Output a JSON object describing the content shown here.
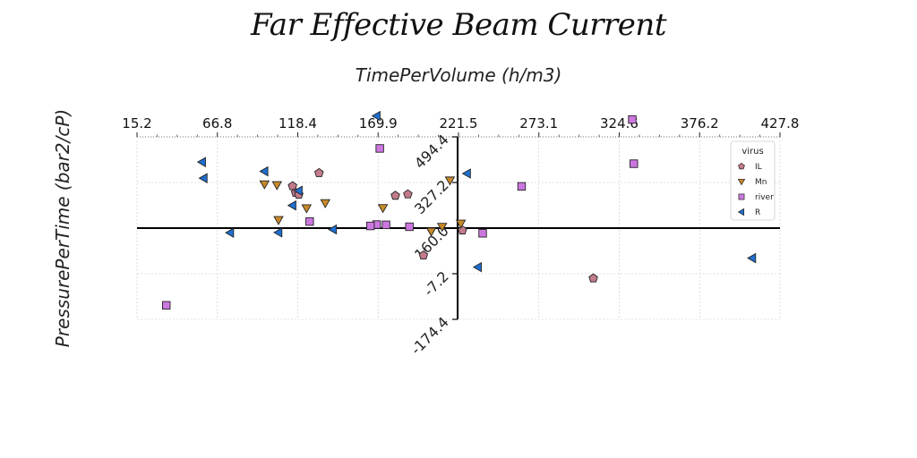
{
  "chart_data": {
    "type": "scatter",
    "title": "Far Effective Beam Current",
    "xlabel": "TimePerVolume (h/m3)",
    "ylabel": "PressurePerTime (bar2/cP)",
    "x_ticks": [
      "15.2",
      "66.8",
      "118.4",
      "169.9",
      "221.5",
      "273.1",
      "324.6",
      "376.2",
      "427.8"
    ],
    "y_ticks": [
      "-174.4",
      "-7.2",
      "160.0",
      "327.2",
      "494.4"
    ],
    "xlim": [
      15.2,
      427.8
    ],
    "ylim": [
      -174.4,
      494.4
    ],
    "grid": true,
    "legend_title": "virus",
    "legend_position": "top-right",
    "series": [
      {
        "name": "IL",
        "marker": "pentagon",
        "color": "#c27b8a",
        "points": [
          [
            132,
            362
          ],
          [
            115,
            314
          ],
          [
            117,
            290
          ],
          [
            119,
            283
          ],
          [
            181,
            279
          ],
          [
            189,
            284
          ],
          [
            224,
            152
          ],
          [
            199,
            60
          ],
          [
            308,
            -24
          ]
        ]
      },
      {
        "name": "Mn",
        "marker": "triangle-down",
        "color": "#c98a2a",
        "points": [
          [
            105,
            318
          ],
          [
            97,
            321
          ],
          [
            136,
            252
          ],
          [
            106,
            190
          ],
          [
            124,
            233
          ],
          [
            216,
            335
          ],
          [
            223,
            177
          ],
          [
            211,
            165
          ],
          [
            204,
            148
          ],
          [
            173,
            234
          ]
        ]
      },
      {
        "name": "river",
        "marker": "square",
        "color": "#cc77e0",
        "points": [
          [
            34,
            -123
          ],
          [
            171,
            452
          ],
          [
            126,
            184
          ],
          [
            169,
            173
          ],
          [
            165,
            168
          ],
          [
            175,
            172
          ],
          [
            190,
            165
          ],
          [
            262,
            313
          ],
          [
            237,
            141
          ],
          [
            333,
            558
          ],
          [
            334,
            396
          ]
        ]
      },
      {
        "name": "R",
        "marker": "triangle-left",
        "color": "#1f6fd0",
        "points": [
          [
            58,
            343
          ],
          [
            57,
            402
          ],
          [
            75,
            143
          ],
          [
            97,
            368
          ],
          [
            106,
            144
          ],
          [
            115,
            243
          ],
          [
            119,
            297
          ],
          [
            141,
            155
          ],
          [
            169,
            571
          ],
          [
            227,
            360
          ],
          [
            234,
            17
          ],
          [
            410,
            50
          ]
        ]
      }
    ]
  }
}
